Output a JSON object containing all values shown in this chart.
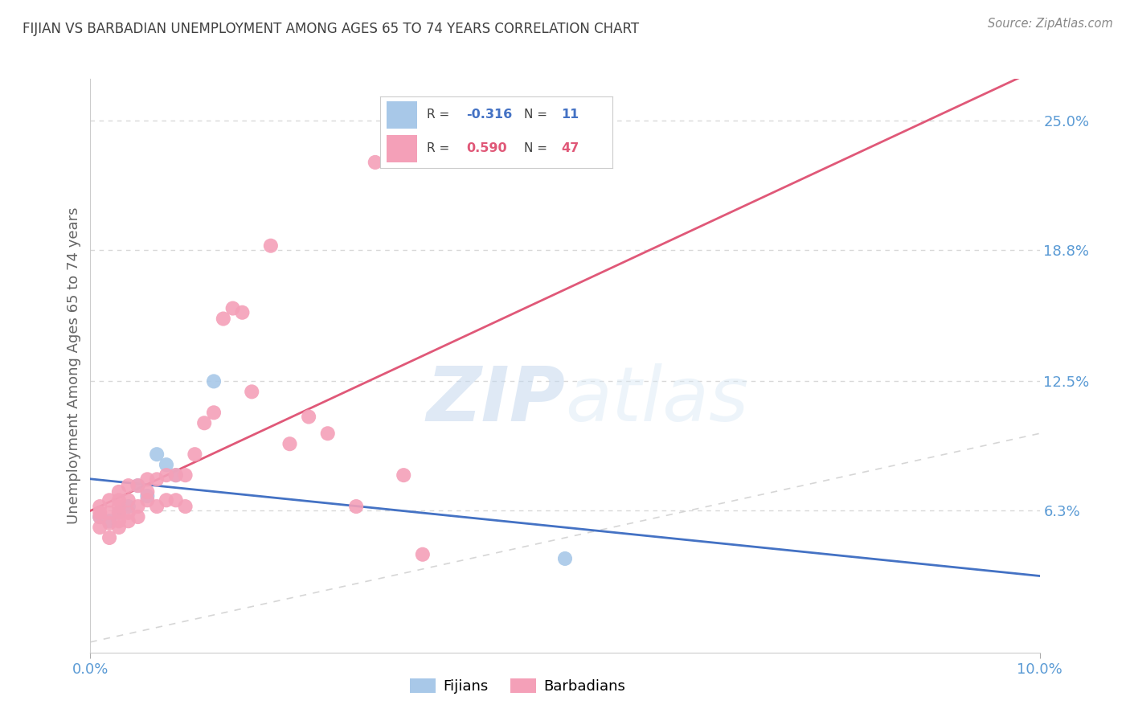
{
  "title": "FIJIAN VS BARBADIAN UNEMPLOYMENT AMONG AGES 65 TO 74 YEARS CORRELATION CHART",
  "source": "Source: ZipAtlas.com",
  "ylabel": "Unemployment Among Ages 65 to 74 years",
  "xlim": [
    0.0,
    0.1
  ],
  "ylim": [
    -0.005,
    0.27
  ],
  "xtick_positions": [
    0.0,
    0.1
  ],
  "xtick_labels": [
    "0.0%",
    "10.0%"
  ],
  "right_yticks": [
    0.063,
    0.125,
    0.188,
    0.25
  ],
  "right_yticklabels": [
    "6.3%",
    "12.5%",
    "18.8%",
    "25.0%"
  ],
  "fijian_color": "#a8c8e8",
  "barbadian_color": "#f4a0b8",
  "fijian_line_color": "#4472c4",
  "barbadian_line_color": "#e05878",
  "diagonal_color": "#cccccc",
  "watermark_zip": "ZIP",
  "watermark_atlas": "atlas",
  "background_color": "#ffffff",
  "grid_color": "#d8d8d8",
  "fijian_x": [
    0.001,
    0.002,
    0.003,
    0.004,
    0.005,
    0.006,
    0.007,
    0.008,
    0.009,
    0.013,
    0.05
  ],
  "fijian_y": [
    0.06,
    0.058,
    0.062,
    0.065,
    0.075,
    0.07,
    0.09,
    0.085,
    0.08,
    0.125,
    0.04
  ],
  "barbadian_x": [
    0.001,
    0.001,
    0.001,
    0.001,
    0.002,
    0.002,
    0.002,
    0.002,
    0.003,
    0.003,
    0.003,
    0.003,
    0.003,
    0.003,
    0.004,
    0.004,
    0.004,
    0.004,
    0.005,
    0.005,
    0.005,
    0.006,
    0.006,
    0.006,
    0.007,
    0.007,
    0.008,
    0.008,
    0.009,
    0.009,
    0.01,
    0.01,
    0.011,
    0.012,
    0.013,
    0.014,
    0.015,
    0.016,
    0.017,
    0.019,
    0.021,
    0.023,
    0.025,
    0.028,
    0.03,
    0.033,
    0.035
  ],
  "barbadian_y": [
    0.055,
    0.06,
    0.062,
    0.065,
    0.05,
    0.057,
    0.062,
    0.068,
    0.055,
    0.058,
    0.062,
    0.065,
    0.068,
    0.072,
    0.058,
    0.062,
    0.068,
    0.075,
    0.06,
    0.065,
    0.075,
    0.068,
    0.072,
    0.078,
    0.065,
    0.078,
    0.068,
    0.08,
    0.068,
    0.08,
    0.065,
    0.08,
    0.09,
    0.105,
    0.11,
    0.155,
    0.16,
    0.158,
    0.12,
    0.19,
    0.095,
    0.108,
    0.1,
    0.065,
    0.23,
    0.08,
    0.042
  ]
}
